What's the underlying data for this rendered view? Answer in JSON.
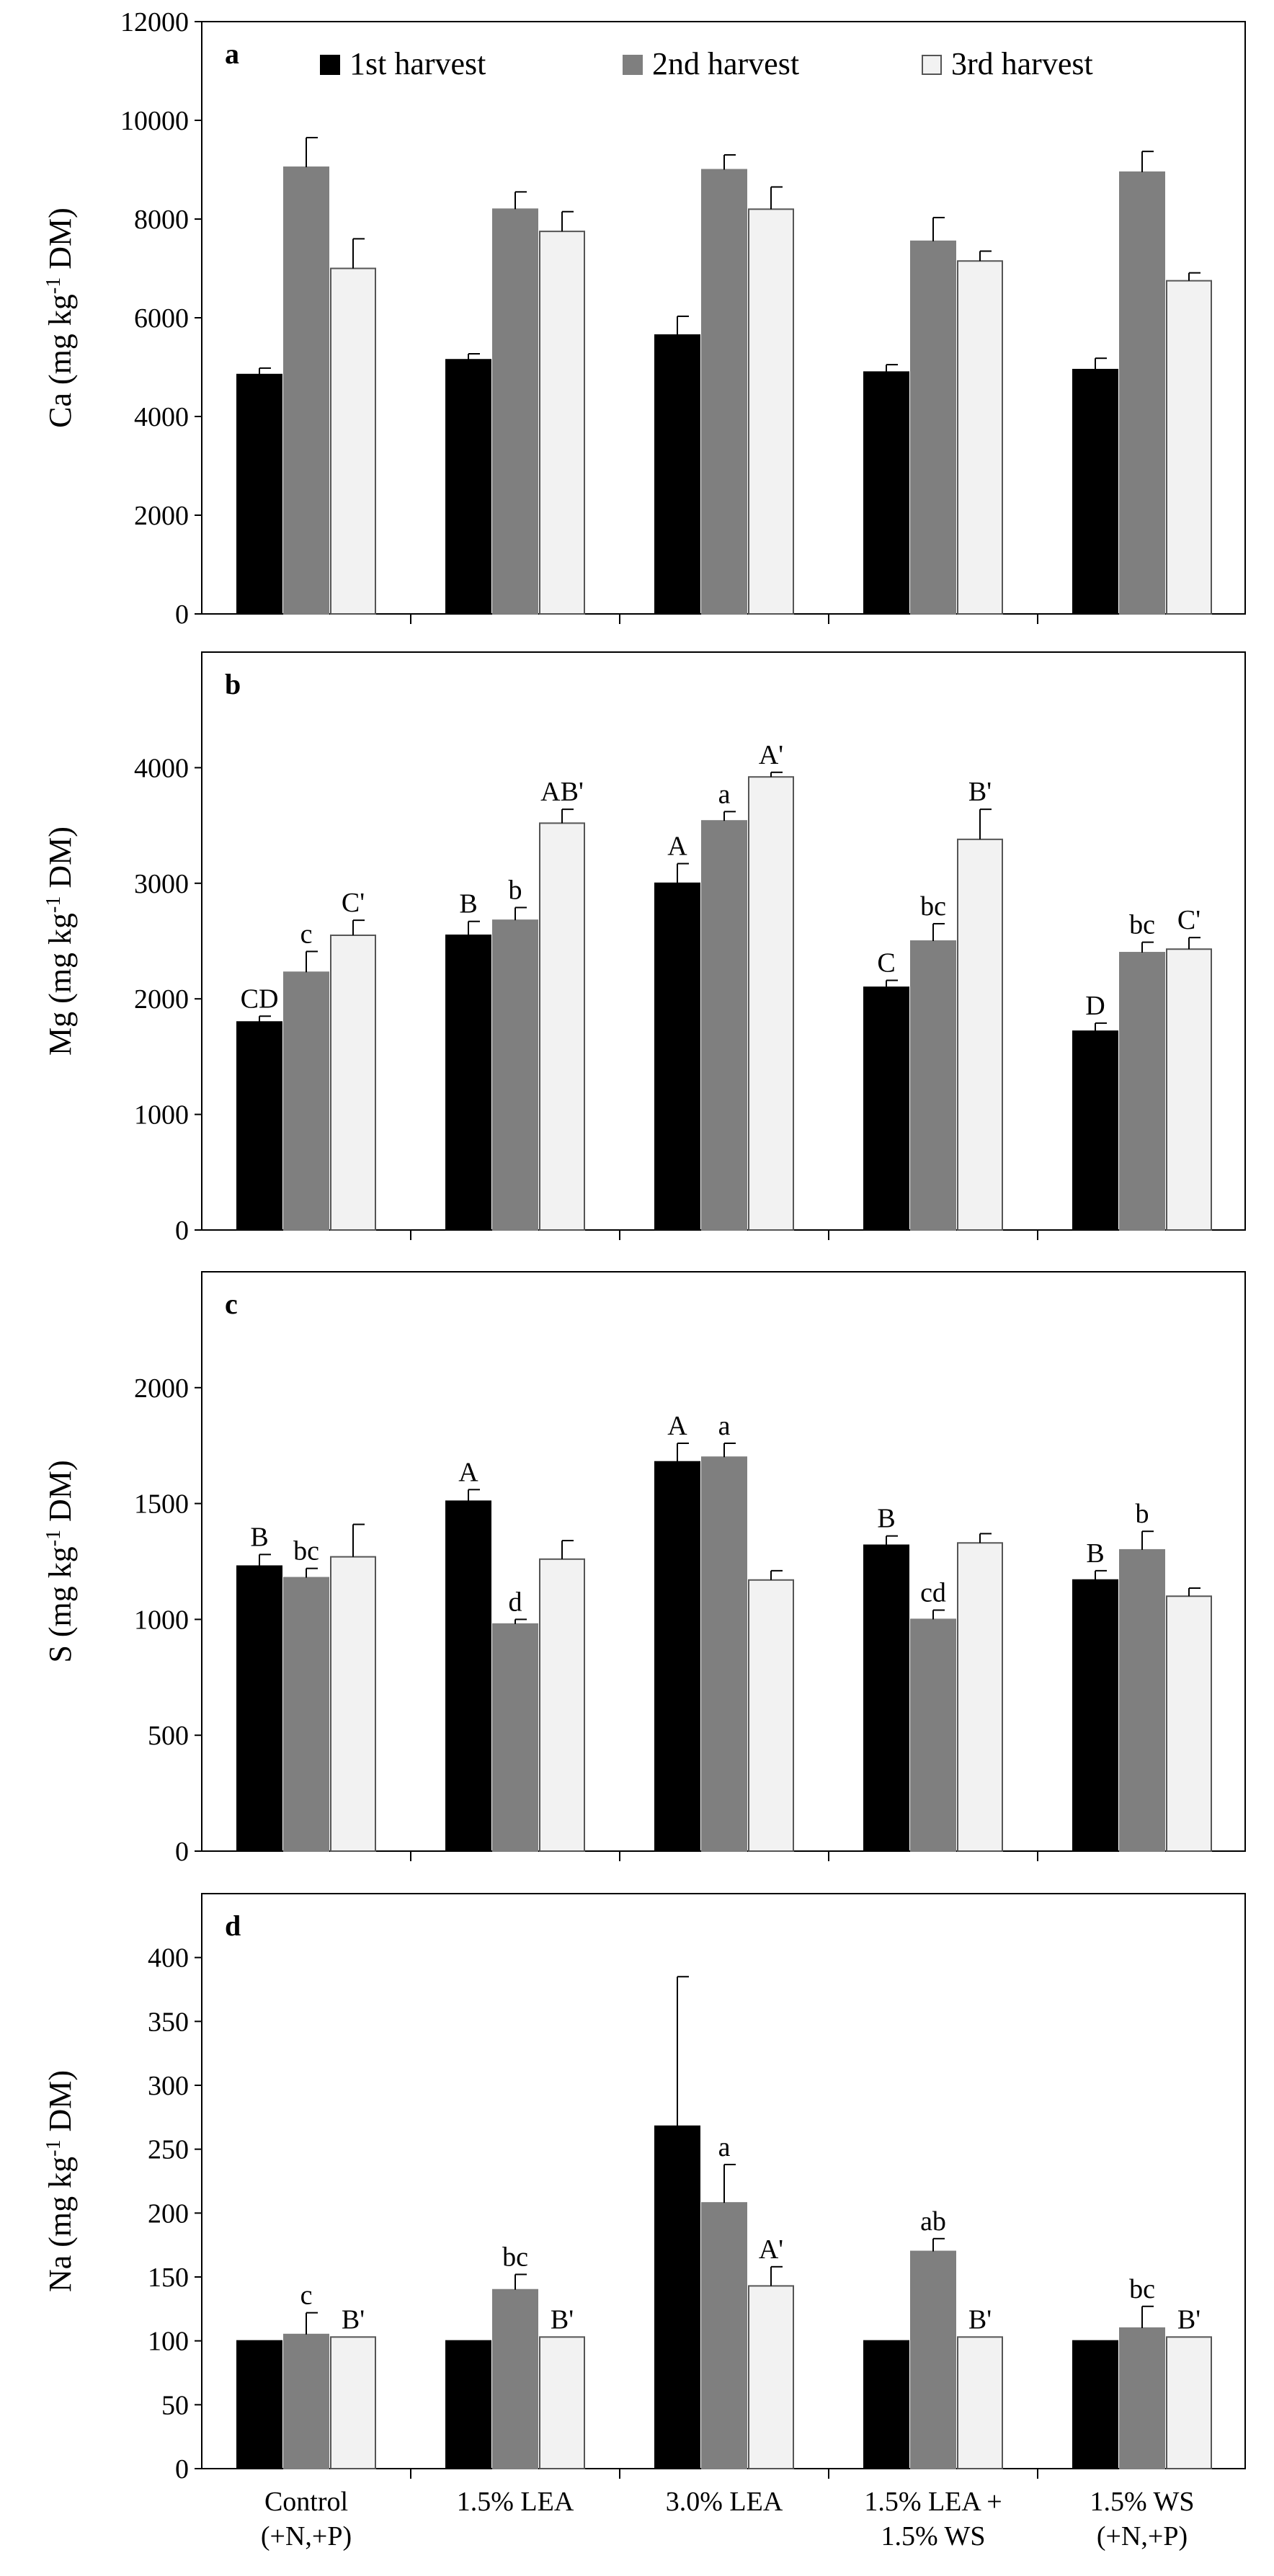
{
  "legend": {
    "series": [
      "1st harvest",
      "2nd harvest",
      "3rd harvest"
    ],
    "colors": [
      "#000000",
      "#7f7f7f",
      "#f2f2f2"
    ]
  },
  "categories": [
    [
      "Control",
      "(+N,+P)"
    ],
    [
      "1.5% LEA"
    ],
    [
      "3.0% LEA"
    ],
    [
      "1.5% LEA +",
      "1.5% WS"
    ],
    [
      "1.5% WS",
      "(+N,+P)"
    ]
  ],
  "chart_data": [
    {
      "type": "bar",
      "panel": "a",
      "ylabel": "Ca (mg kg",
      "ylabel_sup": "-1",
      "ylabel_tail": " DM)",
      "ylim": [
        0,
        12000
      ],
      "yticks": [
        0,
        2000,
        4000,
        6000,
        8000,
        10000,
        12000
      ],
      "series": [
        {
          "name": "1st harvest",
          "values": [
            4850,
            5150,
            5650,
            4900,
            4950
          ],
          "errors": [
            130,
            120,
            380,
            150,
            230
          ],
          "labels": [
            "",
            "",
            "",
            "",
            ""
          ]
        },
        {
          "name": "2nd harvest",
          "values": [
            9050,
            8200,
            9000,
            7550,
            8950
          ],
          "errors": [
            600,
            350,
            300,
            480,
            420
          ],
          "labels": [
            "",
            "",
            "",
            "",
            ""
          ]
        },
        {
          "name": "3rd harvest",
          "values": [
            7000,
            7750,
            8200,
            7150,
            6750
          ],
          "errors": [
            600,
            400,
            450,
            200,
            160
          ],
          "labels": [
            "",
            "",
            "",
            "",
            ""
          ]
        }
      ]
    },
    {
      "type": "bar",
      "panel": "b",
      "ylabel": "Mg (mg kg",
      "ylabel_sup": "-1",
      "ylabel_tail": " DM)",
      "ylim": [
        0,
        5000
      ],
      "yticks": [
        0,
        1000,
        2000,
        3000,
        4000
      ],
      "series": [
        {
          "name": "1st harvest",
          "values": [
            1800,
            2550,
            3000,
            2100,
            1720
          ],
          "errors": [
            50,
            120,
            170,
            60,
            70
          ],
          "labels": [
            "CD",
            "B",
            "A",
            "C",
            "D"
          ]
        },
        {
          "name": "2nd harvest",
          "values": [
            2230,
            2680,
            3540,
            2500,
            2400
          ],
          "errors": [
            180,
            110,
            80,
            150,
            90
          ],
          "labels": [
            "c",
            "b",
            "a",
            "bc",
            "bc"
          ]
        },
        {
          "name": "3rd harvest",
          "values": [
            2550,
            3520,
            3920,
            3380,
            2430
          ],
          "errors": [
            130,
            120,
            40,
            260,
            100
          ],
          "labels": [
            "C'",
            "AB'",
            "A'",
            "B'",
            "C'"
          ]
        }
      ]
    },
    {
      "type": "bar",
      "panel": "c",
      "ylabel": "S (mg kg",
      "ylabel_sup": "-1",
      "ylabel_tail": " DM)",
      "ylim": [
        0,
        2500
      ],
      "yticks": [
        0,
        500,
        1000,
        1500,
        2000
      ],
      "series": [
        {
          "name": "1st harvest",
          "values": [
            1230,
            1510,
            1680,
            1320,
            1170
          ],
          "errors": [
            50,
            50,
            80,
            40,
            40
          ],
          "labels": [
            "B",
            "A",
            "A",
            "B",
            "B"
          ]
        },
        {
          "name": "2nd harvest",
          "values": [
            1180,
            980,
            1700,
            1000,
            1300
          ],
          "errors": [
            40,
            20,
            60,
            40,
            80
          ],
          "labels": [
            "bc",
            "d",
            "a",
            "cd",
            "b"
          ]
        },
        {
          "name": "3rd harvest",
          "values": [
            1270,
            1260,
            1170,
            1330,
            1100
          ],
          "errors": [
            140,
            80,
            40,
            40,
            35
          ],
          "labels": [
            "",
            "",
            "",
            "",
            ""
          ]
        }
      ]
    },
    {
      "type": "bar",
      "panel": "d",
      "ylabel": "Na (mg kg",
      "ylabel_sup": "-1",
      "ylabel_tail": " DM)",
      "ylim": [
        0,
        450
      ],
      "yticks": [
        0,
        50,
        100,
        150,
        200,
        250,
        300,
        350,
        400
      ],
      "series": [
        {
          "name": "1st harvest",
          "values": [
            100,
            100,
            268,
            100,
            100
          ],
          "errors": [
            0,
            0,
            117,
            0,
            0
          ],
          "labels": [
            "",
            "",
            "",
            "",
            ""
          ]
        },
        {
          "name": "2nd harvest",
          "values": [
            105,
            140,
            208,
            170,
            110
          ],
          "errors": [
            17,
            12,
            30,
            10,
            17
          ],
          "labels": [
            "c",
            "bc",
            "a",
            "ab",
            "bc"
          ]
        },
        {
          "name": "3rd harvest",
          "values": [
            103,
            103,
            143,
            103,
            103
          ],
          "errors": [
            0,
            0,
            15,
            0,
            0
          ],
          "labels": [
            "B'",
            "B'",
            "A'",
            "B'",
            "B'"
          ]
        }
      ]
    }
  ]
}
